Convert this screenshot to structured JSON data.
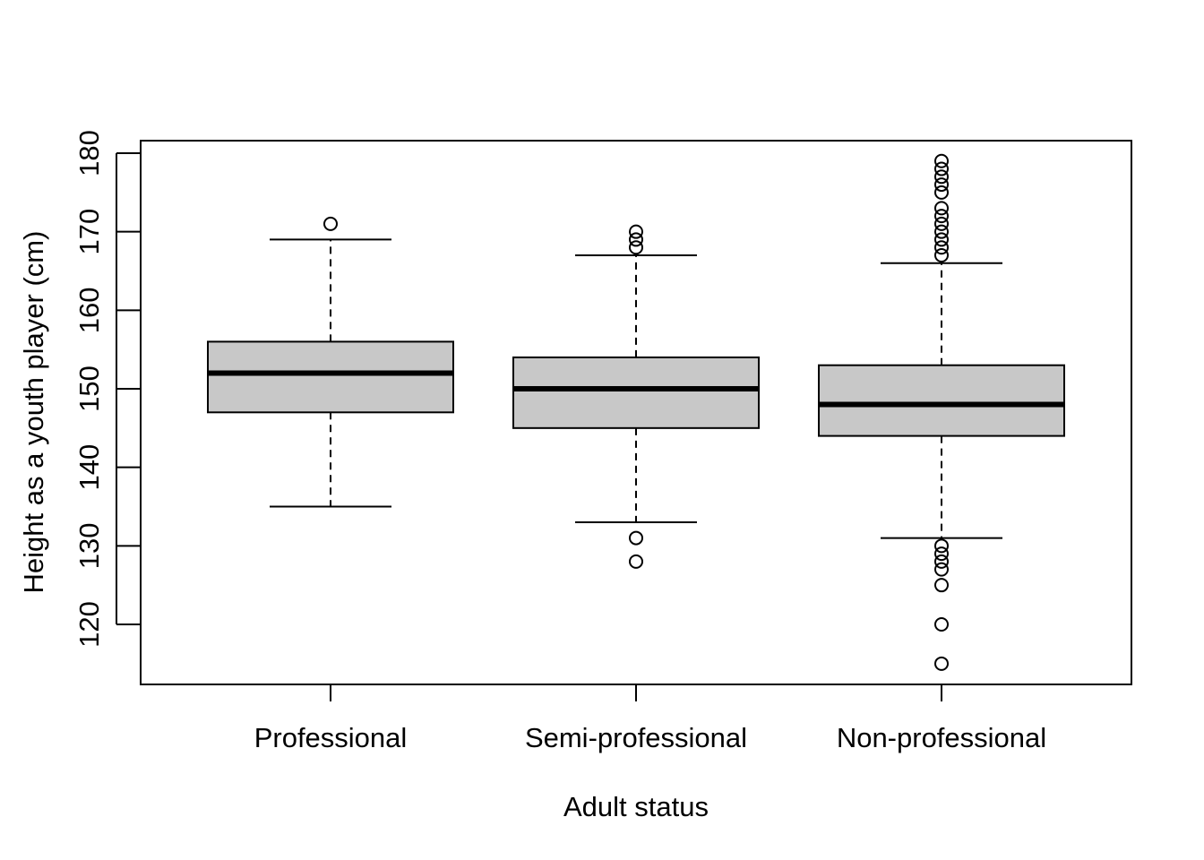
{
  "chart_data": {
    "type": "boxplot",
    "title": "",
    "xlabel": "Adult status",
    "ylabel": "Height as a youth player (cm)",
    "ylim": [
      113,
      182
    ],
    "yticks": [
      120,
      130,
      140,
      150,
      160,
      170,
      180
    ],
    "categories": [
      "Professional",
      "Semi-professional",
      "Non-professional"
    ],
    "boxes": [
      {
        "category": "Professional",
        "whisker_low": 135,
        "q1": 147,
        "median": 152,
        "q3": 156,
        "whisker_high": 169,
        "outliers": [
          171
        ]
      },
      {
        "category": "Semi-professional",
        "whisker_low": 133,
        "q1": 145,
        "median": 150,
        "q3": 154,
        "whisker_high": 167,
        "outliers": [
          128,
          131,
          168,
          169,
          170
        ]
      },
      {
        "category": "Non-professional",
        "whisker_low": 131,
        "q1": 144,
        "median": 148,
        "q3": 153,
        "whisker_high": 166,
        "outliers": [
          115,
          120,
          125,
          127,
          128,
          129,
          130,
          167,
          168,
          169,
          170,
          171,
          172,
          173,
          175,
          176,
          177,
          178,
          179
        ]
      }
    ],
    "box_fill": "#c8c8c8",
    "line_color": "#000000",
    "grid": false,
    "legend": "none"
  }
}
